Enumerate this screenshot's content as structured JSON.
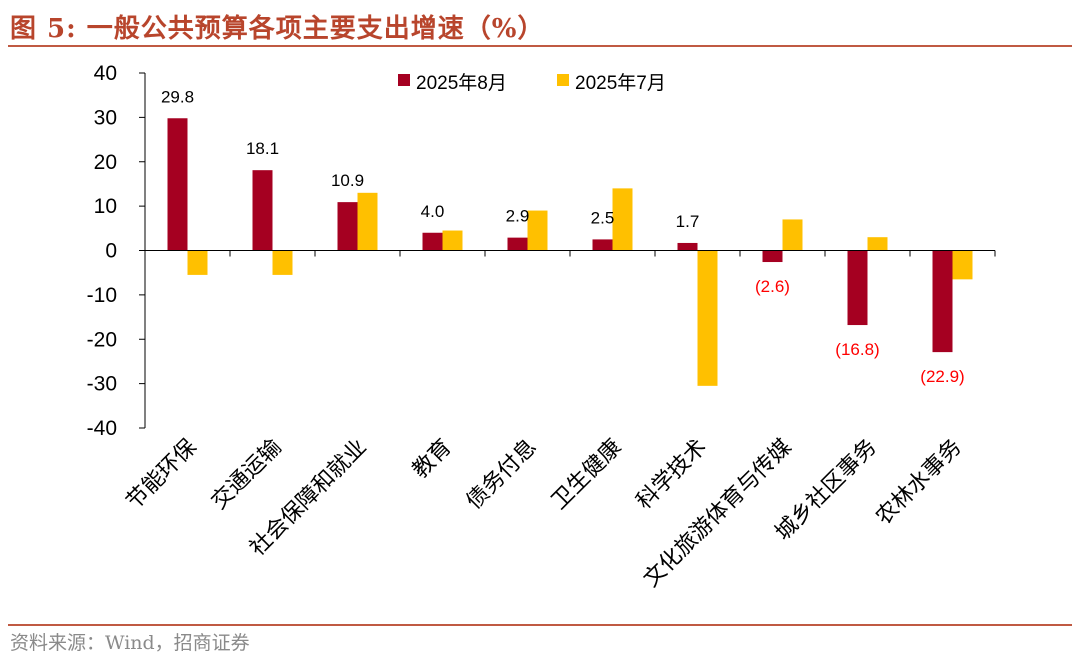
{
  "page": {
    "title": "图 5:  一般公共预算各项主要支出增速（%）",
    "source": "资料来源：Wind，招商证券"
  },
  "colors": {
    "series_aug": "#a50021",
    "series_jul": "#ffc000",
    "title": "#b8452c",
    "negative_label": "#ff0000"
  },
  "chart_data": {
    "type": "bar",
    "categories": [
      "节能环保",
      "交通运输",
      "社会保障和就业",
      "教育",
      "债务付息",
      "卫生健康",
      "科学技术",
      "文化旅游体育与传媒",
      "城乡社区事务",
      "农林水事务"
    ],
    "series": [
      {
        "name": "2025年8月",
        "values": [
          29.8,
          18.1,
          10.9,
          4.0,
          2.9,
          2.5,
          1.7,
          -2.6,
          -16.8,
          -22.9
        ]
      },
      {
        "name": "2025年7月",
        "values": [
          -5.5,
          -5.5,
          13.0,
          4.5,
          9.0,
          14.0,
          -30.5,
          7.0,
          3.0,
          -6.5
        ]
      }
    ],
    "data_labels": [
      "29.8",
      "18.1",
      "10.9",
      "4.0",
      "2.9",
      "2.5",
      "1.7",
      "(2.6)",
      "(16.8)",
      "(22.9)"
    ],
    "ylim": [
      -40,
      40
    ],
    "yticks": [
      "40",
      "30",
      "20",
      "10",
      "0",
      "-10",
      "-20",
      "-30",
      "-40"
    ],
    "legend": "top-center",
    "grid": false
  }
}
